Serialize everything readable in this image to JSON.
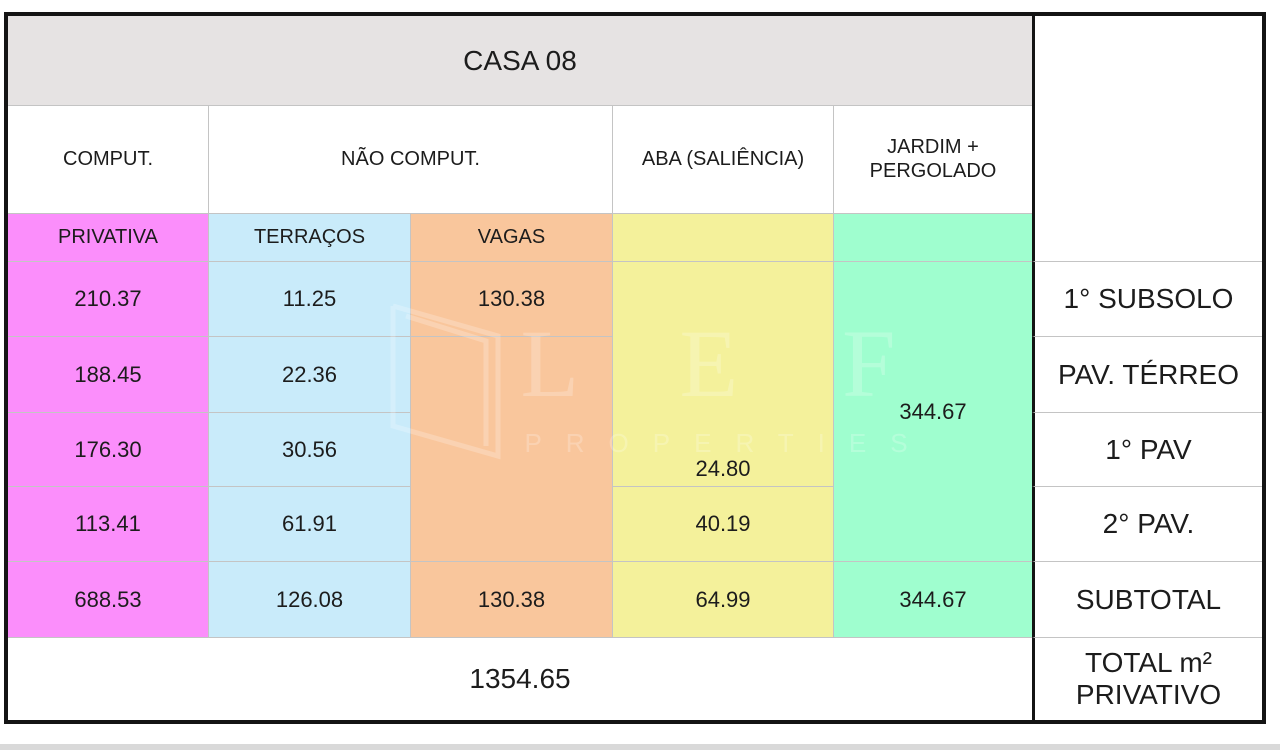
{
  "title": "CASA 08",
  "headers": {
    "comput": "COMPUT.",
    "nao_comput": "NÃO COMPUT.",
    "aba": "ABA (SALIÊNCIA)",
    "jardim": "JARDIM +\nPERGOLADO"
  },
  "subheaders": {
    "privativa": "PRIVATIVA",
    "terracos": "TERRAÇOS",
    "vagas": "VAGAS"
  },
  "rows": [
    {
      "label": "1° SUBSOLO",
      "privativa": "210.37",
      "terracos": "11.25",
      "vagas": "130.38",
      "aba": "",
      "jardim": ""
    },
    {
      "label": "PAV. TÉRREO",
      "privativa": "188.45",
      "terracos": "22.36",
      "vagas": "",
      "aba": "",
      "jardim": "344.67"
    },
    {
      "label": "1° PAV",
      "privativa": "176.30",
      "terracos": "30.56",
      "vagas": "",
      "aba": "24.80",
      "jardim": ""
    },
    {
      "label": "2° PAV.",
      "privativa": "113.41",
      "terracos": "61.91",
      "vagas": "",
      "aba": "40.19",
      "jardim": ""
    }
  ],
  "subtotal": {
    "label": "SUBTOTAL",
    "privativa": "688.53",
    "terracos": "126.08",
    "vagas": "130.38",
    "aba": "64.99",
    "jardim": "344.67"
  },
  "total": {
    "value": "1354.65",
    "label_line1": "TOTAL m²",
    "label_line2": "PRIVATIVO"
  },
  "watermark": {
    "letters": "L E F",
    "tagline": "PROPERTIES"
  },
  "colors": {
    "privativa": "#fb8efb",
    "terracos": "#c9ebfa",
    "vagas": "#f9c69c",
    "aba": "#f4f19b",
    "jardim": "#9ffecf",
    "title_bg": "#e6e3e3"
  }
}
